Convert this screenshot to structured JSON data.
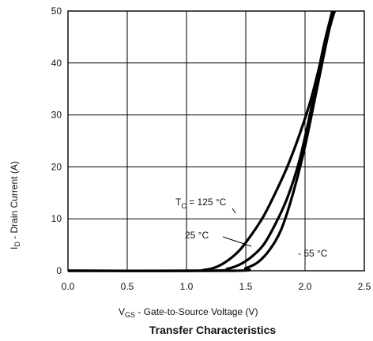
{
  "chart_data": {
    "type": "line",
    "title": "Transfer Characteristics",
    "xlabel": {
      "main": "V",
      "sub": "GS",
      "rest": "  -  Gate-to-Source Voltage (V)"
    },
    "ylabel": {
      "main": "I",
      "sub": "D",
      "rest": "  -  Drain Current (A)"
    },
    "xlim": [
      0,
      2.5
    ],
    "ylim": [
      0,
      50
    ],
    "xticks": [
      "0.0",
      "0.5",
      "1.0",
      "1.5",
      "2.0",
      "2.5"
    ],
    "yticks": [
      "0",
      "10",
      "20",
      "30",
      "40",
      "50"
    ],
    "grid": true,
    "series": [
      {
        "label": "125 °C",
        "points": [
          [
            0,
            0
          ],
          [
            1.0,
            0
          ],
          [
            1.15,
            0.15
          ],
          [
            1.25,
            0.7
          ],
          [
            1.35,
            2.0
          ],
          [
            1.45,
            4.0
          ],
          [
            1.55,
            7.0
          ],
          [
            1.65,
            10.5
          ],
          [
            1.75,
            15.0
          ],
          [
            1.85,
            20.0
          ],
          [
            1.95,
            26.0
          ],
          [
            2.05,
            33.0
          ],
          [
            2.15,
            42.0
          ],
          [
            2.24,
            50.0
          ]
        ]
      },
      {
        "label": "25 °C",
        "points": [
          [
            0,
            0
          ],
          [
            1.2,
            0
          ],
          [
            1.35,
            0.4
          ],
          [
            1.45,
            1.2
          ],
          [
            1.55,
            2.7
          ],
          [
            1.65,
            5.0
          ],
          [
            1.75,
            9.0
          ],
          [
            1.85,
            14.0
          ],
          [
            1.95,
            21.0
          ],
          [
            2.05,
            31.0
          ],
          [
            2.15,
            42.5
          ],
          [
            2.23,
            50.0
          ]
        ]
      },
      {
        "label": "- 55 °C",
        "points": [
          [
            0,
            0
          ],
          [
            1.4,
            0
          ],
          [
            1.5,
            0.5
          ],
          [
            1.6,
            1.6
          ],
          [
            1.7,
            4.0
          ],
          [
            1.8,
            8.0
          ],
          [
            1.9,
            15.0
          ],
          [
            2.0,
            24.0
          ],
          [
            2.1,
            35.0
          ],
          [
            2.2,
            46.0
          ],
          [
            2.25,
            50.0
          ]
        ]
      }
    ],
    "annotations": {
      "tc_main": "T",
      "tc_sub": "C",
      "tc_rest": " = 125 °C",
      "label_25": "25 °C",
      "label_m55": "- 55 °C"
    }
  }
}
